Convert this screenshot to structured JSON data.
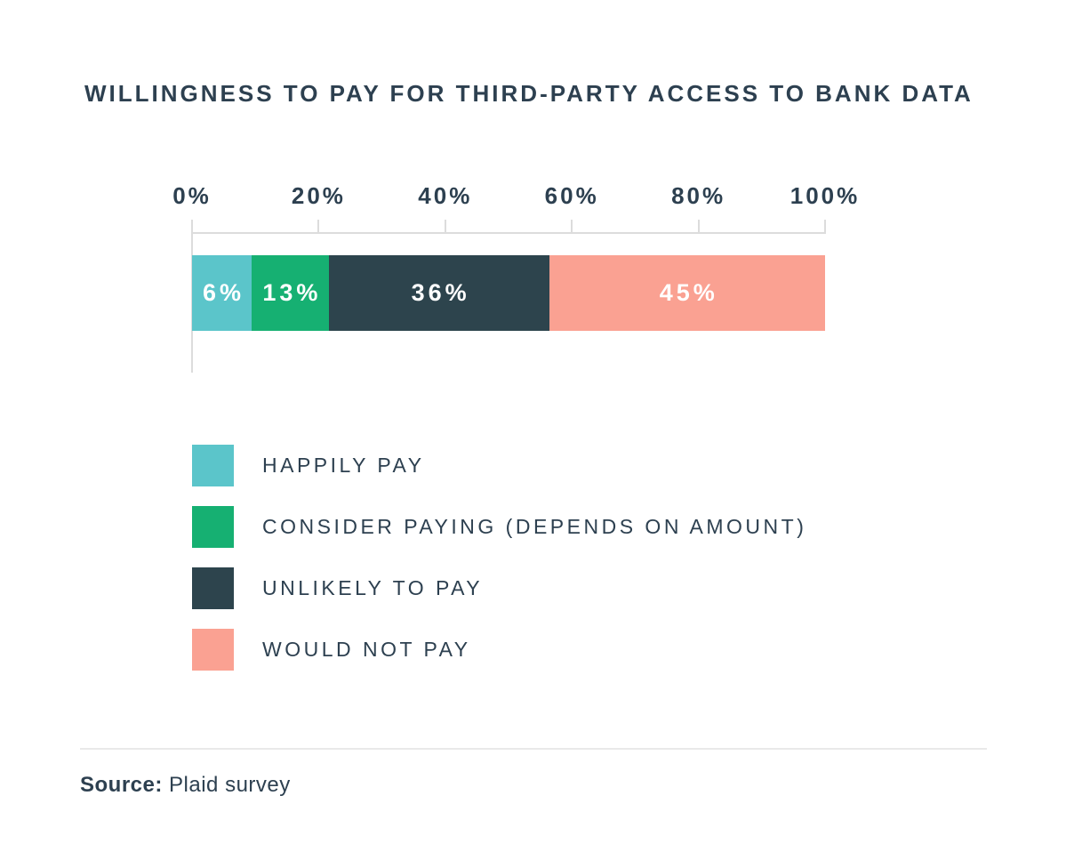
{
  "title": "WILLINGNESS TO PAY FOR THIRD-PARTY ACCESS TO BANK DATA",
  "chart_data": {
    "type": "bar",
    "subtype": "horizontal-stacked",
    "title": "WILLINGNESS TO PAY FOR THIRD-PARTY ACCESS TO BANK DATA",
    "axis_ticks": [
      "0%",
      "20%",
      "40%",
      "60%",
      "80%",
      "100%"
    ],
    "xlim": [
      0,
      100
    ],
    "grid": false,
    "legend_position": "bottom-left",
    "series": [
      {
        "name": "HAPPILY PAY",
        "value": 6,
        "label": "6%",
        "color": "#5bc5ca",
        "display_width_pct": 9.4
      },
      {
        "name": "CONSIDER PAYING (DEPENDS ON AMOUNT)",
        "value": 13,
        "label": "13%",
        "color": "#16b072",
        "display_width_pct": 12.2
      },
      {
        "name": "UNLIKELY TO PAY",
        "value": 36,
        "label": "36%",
        "color": "#2d444d",
        "display_width_pct": 34.8
      },
      {
        "name": "WOULD NOT PAY",
        "value": 45,
        "label": "45%",
        "color": "#faa192",
        "display_width_pct": 43.6
      }
    ]
  },
  "source": {
    "label": "Source:",
    "text": "Plaid survey"
  },
  "colors": {
    "text": "#2d4050",
    "axis_line": "#dcdcdc",
    "divider": "#e9e9e9",
    "bar_label_text": "#ffffff",
    "background": "#ffffff"
  }
}
